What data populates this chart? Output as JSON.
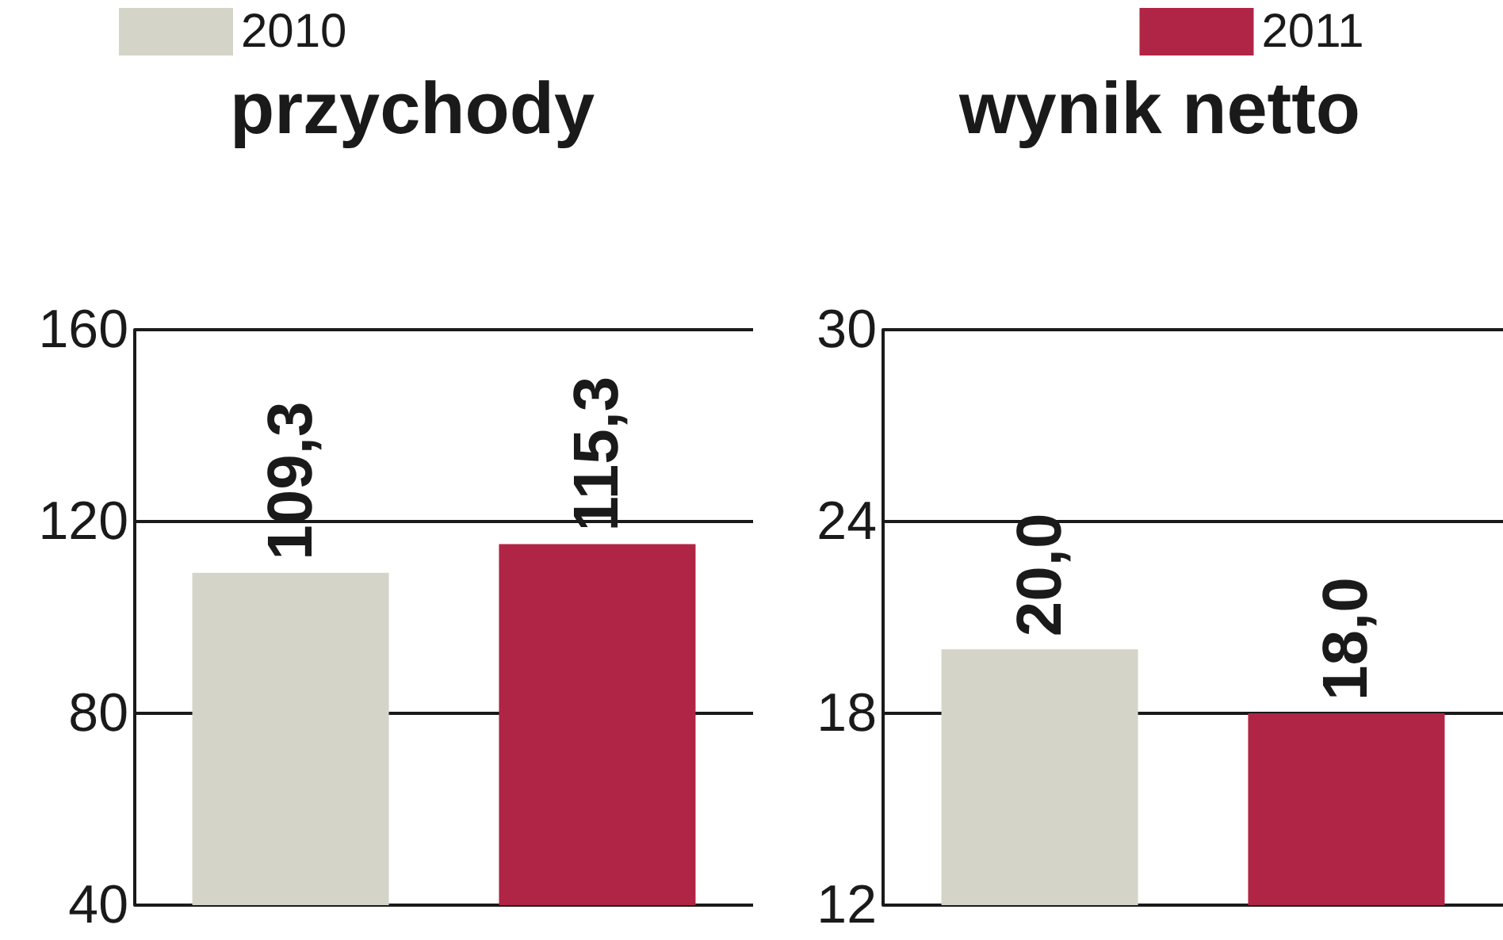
{
  "chart_data": [
    {
      "type": "bar",
      "title": "przychody",
      "categories": [
        null
      ],
      "series": [
        {
          "name": "2010",
          "color": "#d4d5c8",
          "values": [
            109.3
          ],
          "value_labels": [
            "109,3"
          ]
        },
        {
          "name": "2011",
          "color": "#b02545",
          "values": [
            115.3
          ],
          "value_labels": [
            "115,3"
          ]
        }
      ],
      "ylim": [
        40,
        160
      ],
      "yticks": [
        40,
        80,
        120,
        160
      ],
      "grid": "y",
      "legend": "top",
      "tick_labels": "y"
    },
    {
      "type": "bar",
      "title": "wynik netto",
      "categories": [
        null
      ],
      "series": [
        {
          "color": "#d4d5c8",
          "values": [
            20.0
          ],
          "value_labels": [
            "20,0"
          ]
        },
        {
          "color": "#b02545",
          "values": [
            18.0
          ],
          "value_labels": [
            "18,0"
          ]
        }
      ],
      "ylim": [
        12,
        30
      ],
      "yticks": [
        12,
        18,
        24,
        30
      ],
      "grid": "y",
      "legend": false,
      "tick_labels": "y"
    }
  ]
}
